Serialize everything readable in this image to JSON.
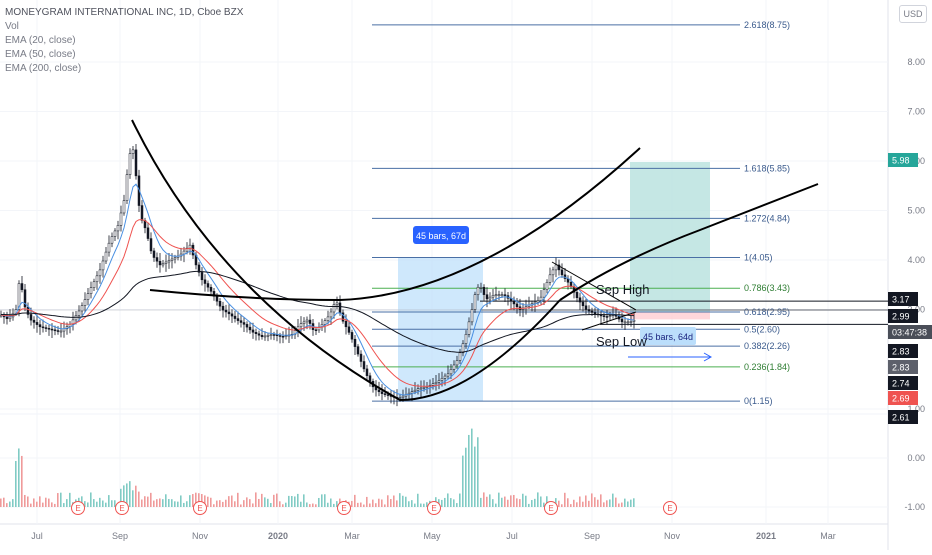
{
  "legend": {
    "title": "MONEYGRAM INTERNATIONAL INC, 1D, Cboe BZX",
    "lines": [
      "Vol",
      "EMA (20, close)",
      "EMA (50, close)",
      "EMA (200, close)"
    ]
  },
  "currency_badge": "USD",
  "price_axis": {
    "ticks": [
      "8.00",
      "7.00",
      "6.00",
      "5.00",
      "4.00",
      "3.00",
      "1.00",
      "0.00",
      "-1.00"
    ],
    "tick_values": [
      8,
      7,
      6,
      5,
      4,
      3,
      1,
      0,
      -1
    ]
  },
  "time_axis": {
    "labels": [
      "Jul",
      "Sep",
      "Nov",
      "2020",
      "Mar",
      "May",
      "Jul",
      "Sep",
      "Nov",
      "2021",
      "Mar"
    ]
  },
  "fib_levels": [
    {
      "label": "2.618(8.75)",
      "value": 8.75
    },
    {
      "label": "1.618(5.85)",
      "value": 5.85
    },
    {
      "label": "1.272(4.84)",
      "value": 4.84
    },
    {
      "label": "1(4.05)",
      "value": 4.05
    },
    {
      "label": "0.786(3.43)",
      "value": 3.43
    },
    {
      "label": "0.618(2.95)",
      "value": 2.95
    },
    {
      "label": "0.5(2.60)",
      "value": 2.6
    },
    {
      "label": "0.382(2.26)",
      "value": 2.26
    },
    {
      "label": "0.236(1.84)",
      "value": 1.84
    },
    {
      "label": "0(1.15)",
      "value": 1.15
    }
  ],
  "annotations": {
    "range_box_label": "45 bars, 67d",
    "range_box_label_2": "45 bars, 64d",
    "sep_high": "Sep High",
    "sep_low": "Sep Low"
  },
  "price_tags": [
    {
      "text": "5.98",
      "color": "#26a69a"
    },
    {
      "text": "3.17",
      "color": "#131722"
    },
    {
      "text": "2.99",
      "color": "#131722"
    },
    {
      "text": "03:47:38",
      "color": "#4a4e58"
    },
    {
      "text": "2.83",
      "color": "#131722"
    },
    {
      "text": "2.83",
      "color": "#5d606b"
    },
    {
      "text": "2.74",
      "color": "#131722"
    },
    {
      "text": "2.69",
      "color": "#ef5350"
    },
    {
      "text": "2.61",
      "color": "#131722"
    }
  ],
  "earnings_marker": "E",
  "colors": {
    "ema20": "#4a90e2",
    "ema50": "#ef5350",
    "ema200": "#131722",
    "fib": "#2962ff",
    "fib_green": "#4caf50",
    "up": "#131722",
    "down": "#131722",
    "volume": "#ef9a9a",
    "volume_up": "#80cbc4"
  }
}
